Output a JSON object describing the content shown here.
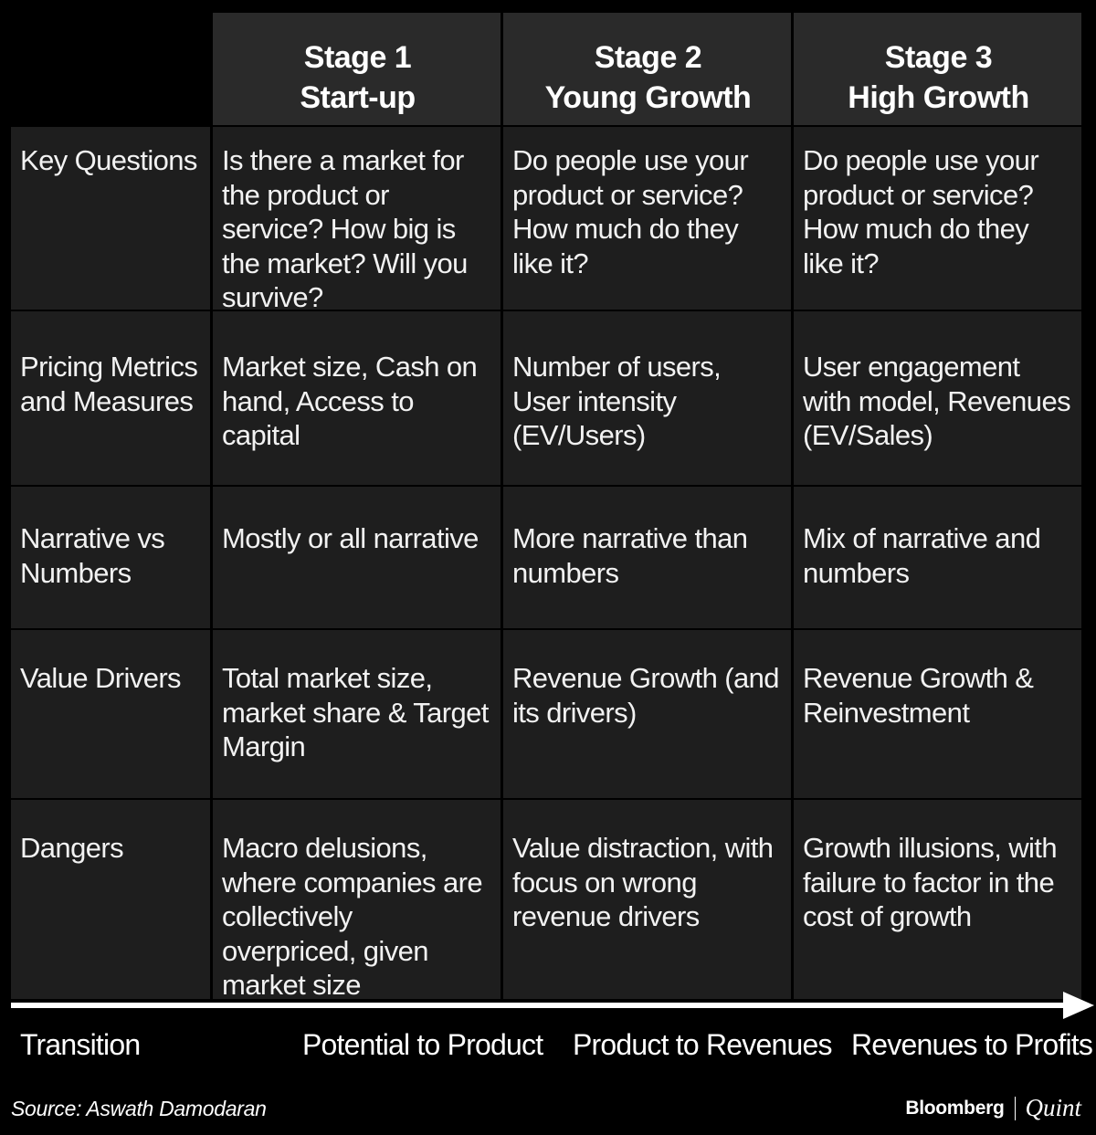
{
  "stages": [
    {
      "line1": "Stage 1",
      "line2": "Start-up"
    },
    {
      "line1": "Stage 2",
      "line2": "Young Growth"
    },
    {
      "line1": "Stage 3",
      "line2": "High Growth"
    }
  ],
  "rows": [
    {
      "label": "Key Questions",
      "cells": [
        "Is there a market for the product or service? How big is the market? Will you survive?",
        "Do people use your product or service? How much do they like it?",
        "Do people use your product or service? How much do they like it?"
      ]
    },
    {
      "label": "Pricing Metrics and Measures",
      "cells": [
        "Market size, Cash on hand, Access to capital",
        "Number of users, User intensity (EV/Users)",
        "User engagement with model, Revenues (EV/Sales)"
      ]
    },
    {
      "label": "Narrative vs Numbers",
      "cells": [
        "Mostly or all narrative",
        "More narrative than numbers",
        "Mix of narrative and numbers"
      ]
    },
    {
      "label": "Value Drivers",
      "cells": [
        "Total market size, market share & Target Margin",
        "Revenue Growth (and its drivers)",
        "Revenue Growth & Reinvestment"
      ]
    },
    {
      "label": "Dangers",
      "cells": [
        "Macro delusions, where companies are collectively overpriced, given market size",
        "Value distraction, with focus on wrong revenue drivers",
        "Growth illusions, with failure to factor in the cost of growth"
      ]
    }
  ],
  "transition": {
    "label": "Transition",
    "steps": [
      "Potential to Product",
      "Product to Revenues",
      "Revenues to Profits"
    ]
  },
  "source": "Source: Aswath Damodaran",
  "brand": {
    "name": "Bloomberg",
    "partner": "Quint"
  },
  "colors": {
    "background": "#000000",
    "cell": "#1e1e1e",
    "header_cell": "#2a2a2a",
    "text": "#ffffff"
  }
}
